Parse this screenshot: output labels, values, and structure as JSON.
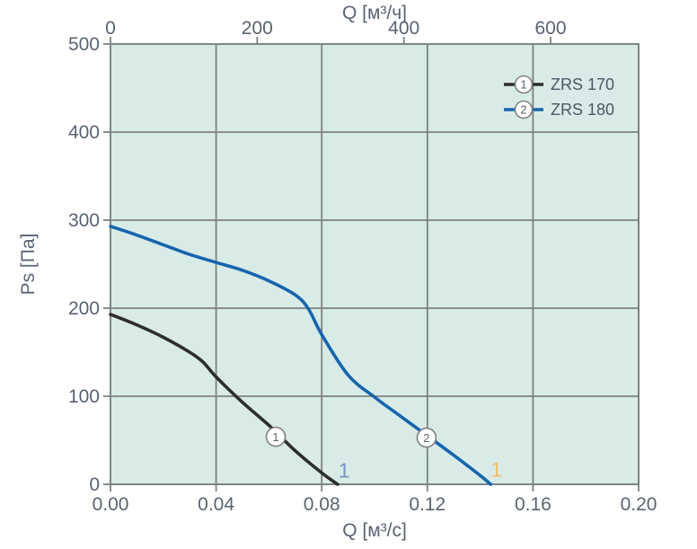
{
  "chart_data": {
    "type": "line",
    "title": "",
    "top_axis": {
      "label": "Q [м³/ч]",
      "ticks": [
        "0",
        "200",
        "400",
        "600"
      ],
      "tick_values": [
        0,
        200,
        400,
        600
      ],
      "range": [
        0,
        720
      ]
    },
    "bottom_axis": {
      "label": "Q [м³/с]",
      "ticks": [
        "0.00",
        "0.04",
        "0.08",
        "0.12",
        "0.16",
        "0.20"
      ],
      "tick_values": [
        0,
        0.04,
        0.08,
        0.12,
        0.16,
        0.2
      ],
      "range": [
        0,
        0.2
      ]
    },
    "left_axis": {
      "label": "Ps [Па]",
      "ticks": [
        "0",
        "100",
        "200",
        "300",
        "400",
        "500"
      ],
      "tick_values": [
        0,
        100,
        200,
        300,
        400,
        500
      ],
      "range": [
        0,
        500
      ]
    },
    "grid": true,
    "legend_position": "top-right",
    "series": [
      {
        "id": "1",
        "name": "ZRS 170",
        "color": "#2d2d2d",
        "points": [
          [
            0,
            193
          ],
          [
            0.01,
            181
          ],
          [
            0.02,
            167
          ],
          [
            0.03,
            150
          ],
          [
            0.035,
            139
          ],
          [
            0.04,
            122
          ],
          [
            0.05,
            93
          ],
          [
            0.06,
            67
          ],
          [
            0.07,
            38
          ],
          [
            0.08,
            13
          ],
          [
            0.086,
            0
          ]
        ],
        "marker": {
          "symbol": "1",
          "q": 0.0626,
          "p": 54
        }
      },
      {
        "id": "2",
        "name": "ZRS 180",
        "color": "#1565ae",
        "points": [
          [
            0,
            293
          ],
          [
            0.01,
            283
          ],
          [
            0.02,
            272
          ],
          [
            0.03,
            261
          ],
          [
            0.04,
            252
          ],
          [
            0.05,
            243
          ],
          [
            0.06,
            231
          ],
          [
            0.07,
            215
          ],
          [
            0.075,
            199
          ],
          [
            0.08,
            170
          ],
          [
            0.09,
            124
          ],
          [
            0.1,
            99
          ],
          [
            0.11,
            77
          ],
          [
            0.12,
            55
          ],
          [
            0.13,
            33
          ],
          [
            0.14,
            10
          ],
          [
            0.144,
            0
          ]
        ],
        "marker": {
          "symbol": "2",
          "q": 0.1197,
          "p": 53
        }
      }
    ],
    "annotations": [
      {
        "text": "1",
        "q": 0.0885,
        "p": 16,
        "color": "#7e95c4"
      },
      {
        "text": "1",
        "q": 0.1462,
        "p": 17,
        "color": "#edbd64"
      }
    ]
  },
  "legend": {
    "items": [
      {
        "symbol": "1",
        "label": "ZRS 170"
      },
      {
        "symbol": "2",
        "label": "ZRS 180"
      }
    ]
  },
  "colors": {
    "plot_background": "#d9ebe7",
    "grid": "#7c8282",
    "tick_text": "#5a6372",
    "marker_fill": "#ffffff",
    "marker_stroke": "#808080"
  }
}
